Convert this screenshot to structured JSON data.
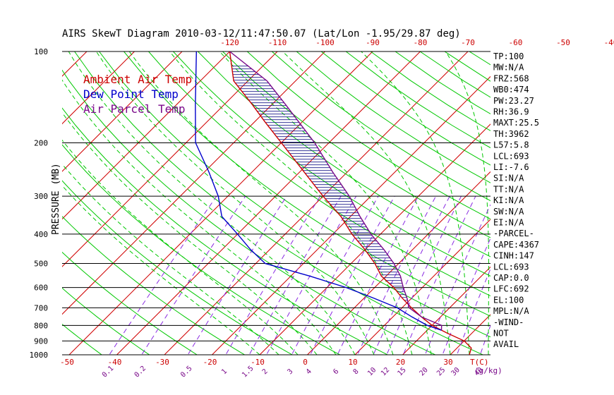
{
  "title": "AIRS SkewT Diagram 2010-03-12/11:47:50.07 (Lat/Lon -1.95/29.87 deg)",
  "legend": [
    {
      "label": "Ambient Air Temp",
      "color": "#cc0000"
    },
    {
      "label": "Dew Point Temp",
      "color": "#0000cc"
    },
    {
      "label": "Air Parcel Temp",
      "color": "#7a0a8a"
    }
  ],
  "stats": [
    "TP:100",
    "MW:N/A",
    "FRZ:568",
    "WB0:474",
    "PW:23.27",
    "RH:36.9",
    "MAXT:25.5",
    "TH:3962",
    "L57:5.8",
    "LCL:693",
    "LI:-7.6",
    "SI:N/A",
    "TT:N/A",
    "KI:N/A",
    "SW:N/A",
    "EI:N/A",
    "-PARCEL-",
    "CAPE:4367",
    "CINH:147",
    "LCL:693",
    "CAP:0.0",
    "LFC:692",
    "EL:100",
    "MPL:N/A",
    "-WIND-",
    "NOT",
    "AVAIL"
  ],
  "chart_data": {
    "type": "line",
    "title": "AIRS SkewT Diagram 2010-03-12/11:47:50.07 (Lat/Lon -1.95/29.87 deg)",
    "ylabel": "PRESSURE (MB)",
    "xlabel": "T(C)",
    "mixing_ratio_label": "(g/kg)",
    "y_log_scale": true,
    "ylim": [
      1000,
      100
    ],
    "xlim": [
      -50,
      40
    ],
    "pressure_ticks": [
      100,
      200,
      300,
      400,
      500,
      600,
      700,
      800,
      900,
      1000
    ],
    "top_temp_ticks": [
      -120,
      -110,
      -100,
      -90,
      -80,
      -70,
      -60,
      -50,
      -40
    ],
    "bottom_temp_ticks": [
      -50,
      -40,
      -30,
      -20,
      -10,
      0,
      10,
      20,
      30
    ],
    "mixing_ratio_ticks": [
      "0.1",
      "0.2",
      "0.5",
      "1",
      "1.5",
      "2",
      "3",
      "4",
      "6",
      "8",
      "10",
      "12",
      "15",
      "20",
      "25",
      "30",
      "40"
    ],
    "series": [
      {
        "name": "Ambient Air Temp",
        "color": "#cc0000",
        "points": [
          [
            1000,
            34
          ],
          [
            950,
            33
          ],
          [
            900,
            30
          ],
          [
            850,
            25
          ],
          [
            800,
            20
          ],
          [
            750,
            16
          ],
          [
            700,
            12
          ],
          [
            650,
            8
          ],
          [
            600,
            4
          ],
          [
            550,
            -1
          ],
          [
            500,
            -5
          ],
          [
            450,
            -10
          ],
          [
            400,
            -16
          ],
          [
            350,
            -22
          ],
          [
            300,
            -30
          ],
          [
            250,
            -39
          ],
          [
            200,
            -50
          ],
          [
            170,
            -58
          ],
          [
            150,
            -64
          ],
          [
            125,
            -73
          ],
          [
            100,
            -80
          ]
        ]
      },
      {
        "name": "Dew Point Temp",
        "color": "#0000cc",
        "points": [
          [
            830,
            23
          ],
          [
            800,
            19
          ],
          [
            750,
            14
          ],
          [
            700,
            9
          ],
          [
            650,
            2
          ],
          [
            600,
            -6
          ],
          [
            550,
            -16
          ],
          [
            500,
            -28
          ],
          [
            450,
            -34
          ],
          [
            400,
            -40
          ],
          [
            350,
            -47
          ],
          [
            300,
            -52
          ],
          [
            250,
            -59
          ],
          [
            200,
            -68
          ],
          [
            150,
            -76
          ],
          [
            100,
            -87
          ]
        ]
      },
      {
        "name": "Air Parcel Temp",
        "color": "#7a0a8a",
        "points": [
          [
            830,
            23
          ],
          [
            800,
            22
          ],
          [
            750,
            16
          ],
          [
            700,
            11.5
          ],
          [
            650,
            9
          ],
          [
            600,
            6
          ],
          [
            550,
            3
          ],
          [
            500,
            -1
          ],
          [
            450,
            -6
          ],
          [
            400,
            -12
          ],
          [
            350,
            -18
          ],
          [
            300,
            -24.5
          ],
          [
            250,
            -33
          ],
          [
            200,
            -43
          ],
          [
            150,
            -57
          ],
          [
            125,
            -66
          ],
          [
            100,
            -80
          ]
        ]
      }
    ]
  }
}
